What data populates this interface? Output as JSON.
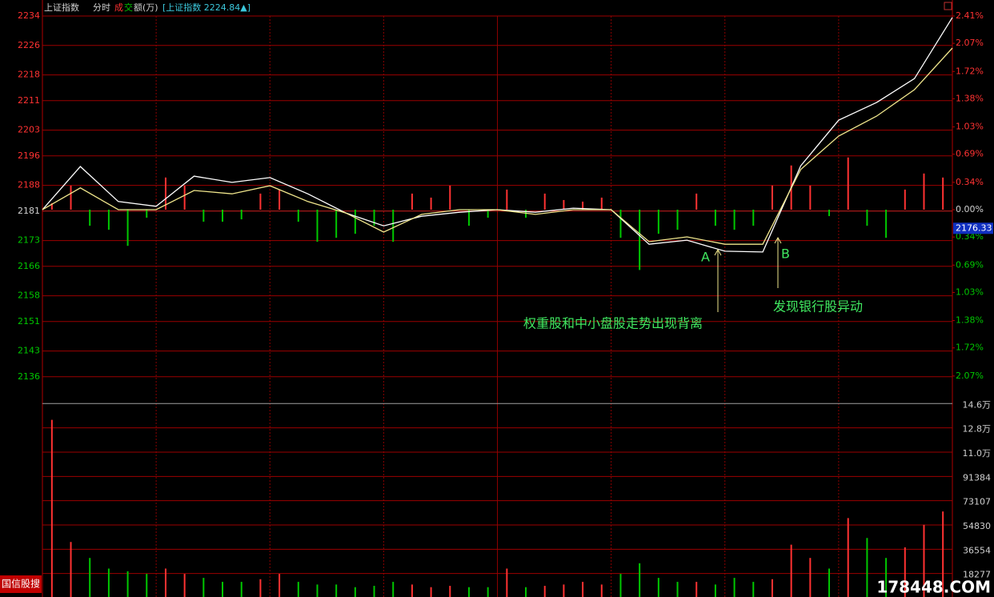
{
  "header": {
    "name": "上证指数",
    "mode": "分时",
    "volume_label_parts": [
      "成",
      "交",
      "额(万)"
    ],
    "quote": "[上证指数 2224.84▲]"
  },
  "brand": "国信股搜",
  "watermark": "178448.COM",
  "annotations": [
    "A",
    "B",
    "权重股和中小盘股走势出现背离",
    "发现银行股异动"
  ],
  "chart_data": {
    "type": "line",
    "ylim": [
      2129,
      2234
    ],
    "yticks": [
      2234,
      2226,
      2218,
      2211,
      2203,
      2196,
      2188,
      2181,
      2173,
      2166,
      2158,
      2151,
      2143,
      2136
    ],
    "y2lim": [
      -2.4,
      2.41
    ],
    "y2ticks": [
      {
        "value": 2.41,
        "label": "2.41%"
      },
      {
        "value": 2.07,
        "label": "2.07%"
      },
      {
        "value": 1.72,
        "label": "1.72%"
      },
      {
        "value": 1.38,
        "label": "1.38%"
      },
      {
        "value": 1.03,
        "label": "1.03%"
      },
      {
        "value": 0.69,
        "label": "0.69%"
      },
      {
        "value": 0.34,
        "label": "0.34%"
      },
      {
        "value": 0,
        "label": "0.00%"
      },
      {
        "value": -0.34,
        "label": "0.34%"
      },
      {
        "value": -0.69,
        "label": "0.69%"
      },
      {
        "value": -1.03,
        "label": "1.03%"
      },
      {
        "value": -1.38,
        "label": "1.38%"
      },
      {
        "value": -1.72,
        "label": "1.72%"
      },
      {
        "value": -2.07,
        "label": "2.07%"
      }
    ],
    "last_price": 2176.33,
    "grid": true,
    "series": [
      {
        "color": "#ffffff",
        "values": [
          2181.4,
          2193.1,
          2183.6,
          2182.3,
          2190.5,
          2188.8,
          2190.1,
          2185.7,
          2180.5,
          2177.0,
          2179.6,
          2180.7,
          2181.4,
          2180.7,
          2181.8,
          2181.4,
          2172.0,
          2173.1,
          2170.1,
          2169.9,
          2193.3,
          2205.7,
          2210.5,
          2217.0,
          2233.6
        ]
      },
      {
        "color": "#f0e68c",
        "values": [
          2181.4,
          2187.3,
          2181.4,
          2181.4,
          2186.6,
          2185.7,
          2187.9,
          2183.6,
          2180.5,
          2175.3,
          2180.1,
          2181.4,
          2181.4,
          2180.1,
          2181.4,
          2181.4,
          2172.7,
          2174.0,
          2172.0,
          2172.0,
          2192.3,
          2201.4,
          2206.8,
          2214.0,
          2225.3
        ]
      }
    ],
    "strength": {
      "axis": "y2",
      "up_color": "#ff3232",
      "down_color": "#00c800",
      "values": [
        0.08,
        0.3,
        -0.2,
        -0.25,
        -0.45,
        -0.1,
        0.4,
        0.3,
        -0.15,
        -0.15,
        -0.12,
        0.2,
        0.25,
        -0.15,
        -0.4,
        -0.35,
        -0.3,
        -0.2,
        -0.4,
        0.2,
        0.15,
        0.3,
        -0.2,
        -0.1,
        0.25,
        -0.1,
        0.2,
        0.12,
        0.1,
        0.15,
        -0.35,
        -0.75,
        -0.3,
        -0.25,
        0.2,
        -0.2,
        -0.25,
        -0.2,
        0.3,
        0.55,
        0.3,
        -0.08,
        0.65,
        -0.2,
        -0.35,
        0.25,
        0.45,
        0.4
      ]
    },
    "volume": {
      "ylim": [
        0,
        147000
      ],
      "yticks": [
        {
          "value": 146216,
          "label": "14.6万"
        },
        {
          "value": 127939,
          "label": "12.8万"
        },
        {
          "value": 109661,
          "label": "11.0万"
        },
        91384,
        73107,
        54830,
        36554,
        18277
      ],
      "values": [
        134000,
        42000,
        30000,
        22000,
        20000,
        18000,
        22000,
        18000,
        15000,
        12000,
        12000,
        14000,
        18000,
        12000,
        10000,
        10000,
        8000,
        9000,
        12000,
        10000,
        8000,
        9000,
        8000,
        8000,
        22000,
        8000,
        9000,
        10000,
        12000,
        10000,
        18000,
        26000,
        15000,
        12000,
        12000,
        10000,
        15000,
        12000,
        14000,
        40000,
        30000,
        22000,
        60000,
        45000,
        30000,
        38000,
        55000,
        65000
      ]
    }
  }
}
